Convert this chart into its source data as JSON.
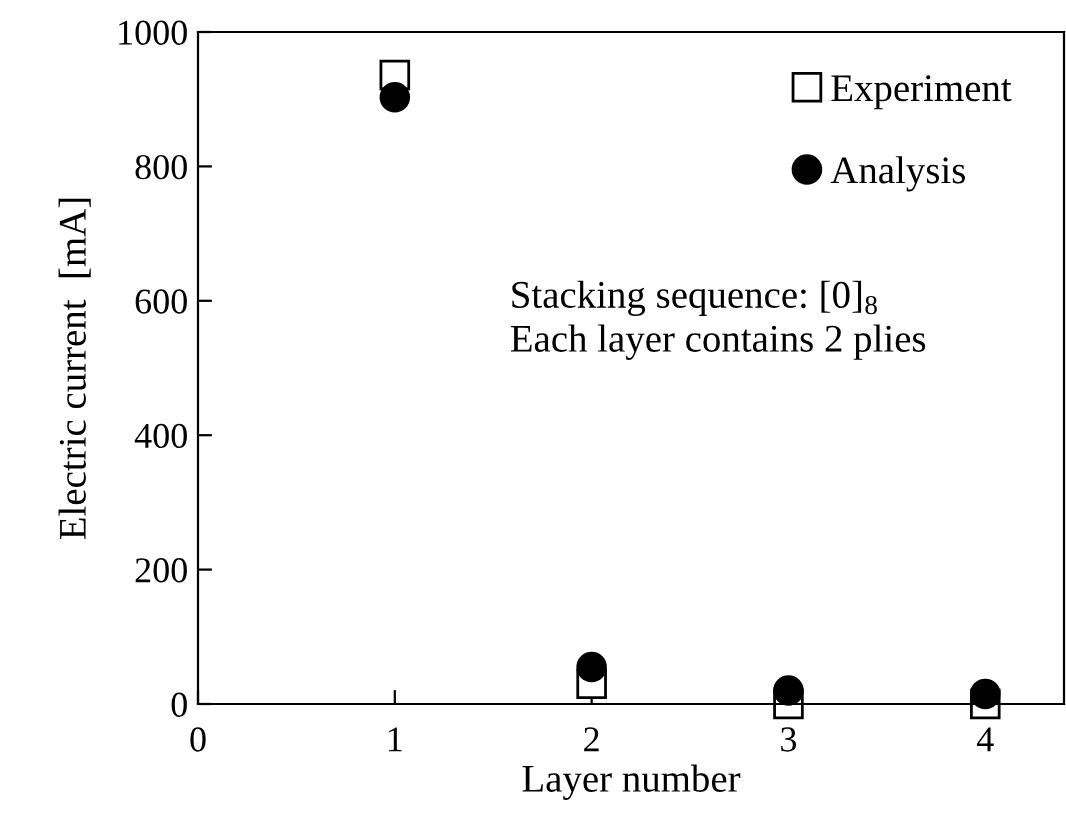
{
  "chart_data": {
    "type": "scatter",
    "xlabel": "Layer number",
    "ylabel": "Electric current  [mA]",
    "x": [
      1,
      2,
      3,
      4
    ],
    "series": [
      {
        "name": "Experiment",
        "color": "#000000",
        "marker": "square",
        "values": [
          936,
          30,
          0,
          0
        ]
      },
      {
        "name": "Analysis",
        "color": "#000000",
        "marker": "circle",
        "values": [
          903,
          55,
          20,
          15
        ]
      }
    ],
    "xlim": [
      0,
      4.4
    ],
    "xticks": [
      0,
      1,
      2,
      3,
      4
    ],
    "ylim": [
      0,
      1000
    ],
    "yticks": [
      0,
      200,
      400,
      600,
      800,
      1000
    ],
    "grid": false,
    "legend": "top right",
    "annotations": [
      "Stacking sequence: [0]$_{8}$\nEach layer contains 2 plies"
    ]
  }
}
